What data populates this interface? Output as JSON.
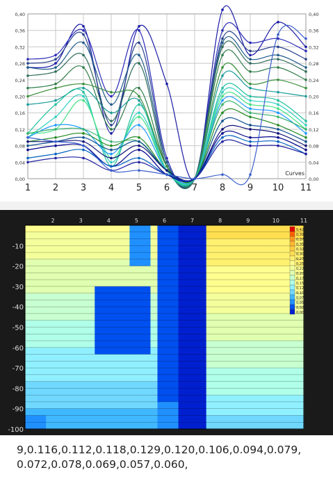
{
  "chart_data": [
    {
      "type": "line",
      "x": [
        1,
        2,
        3,
        4,
        5,
        6,
        7,
        8,
        9,
        10,
        11
      ],
      "xlim": [
        1,
        11
      ],
      "ylim": [
        0,
        0.4
      ],
      "yticks": [
        "0,00",
        "0,04",
        "0,08",
        "0,12",
        "0,16",
        "0,20",
        "0,24",
        "0,28",
        "0,32",
        "0,36",
        "0,40"
      ],
      "xticks": [
        "1",
        "2",
        "3",
        "4",
        "5",
        "6",
        "7",
        "8",
        "9",
        "10",
        "11"
      ],
      "grid": true,
      "legend_label": "Curves",
      "series": [
        {
          "color": "#1a1aa6",
          "values": [
            0.27,
            0.28,
            0.37,
            0.11,
            0.37,
            0.23,
            0.0,
            0.41,
            0.3,
            0.38,
            0.32
          ]
        },
        {
          "color": "#2a2ab8",
          "values": [
            0.29,
            0.3,
            0.36,
            0.2,
            0.36,
            0.05,
            0.0,
            0.36,
            0.33,
            0.34,
            0.31
          ]
        },
        {
          "color": "#27408b",
          "values": [
            0.28,
            0.29,
            0.35,
            0.13,
            0.33,
            0.04,
            0.0,
            0.34,
            0.31,
            0.32,
            0.29
          ]
        },
        {
          "color": "#1f5a8a",
          "values": [
            0.27,
            0.27,
            0.33,
            0.18,
            0.3,
            0.04,
            0.0,
            0.33,
            0.29,
            0.3,
            0.27
          ]
        },
        {
          "color": "#2e6b5a",
          "values": [
            0.25,
            0.26,
            0.3,
            0.14,
            0.28,
            0.03,
            0.0,
            0.32,
            0.28,
            0.29,
            0.26
          ]
        },
        {
          "color": "#2f7c4a",
          "values": [
            0.22,
            0.23,
            0.27,
            0.12,
            0.22,
            0.03,
            0.0,
            0.3,
            0.26,
            0.27,
            0.24
          ]
        },
        {
          "color": "#3a8f3a",
          "values": [
            0.2,
            0.22,
            0.23,
            0.21,
            0.2,
            0.03,
            0.0,
            0.27,
            0.23,
            0.24,
            0.22
          ]
        },
        {
          "color": "#1a9a9a",
          "values": [
            0.18,
            0.19,
            0.22,
            0.16,
            0.19,
            0.02,
            0.0,
            0.25,
            0.22,
            0.21,
            0.2
          ]
        },
        {
          "color": "#20c0a0",
          "values": [
            0.11,
            0.18,
            0.21,
            0.03,
            0.18,
            0.02,
            0.0,
            0.22,
            0.2,
            0.19,
            0.14
          ]
        },
        {
          "color": "#30d0c0",
          "values": [
            0.1,
            0.15,
            0.2,
            0.04,
            0.16,
            0.02,
            0.0,
            0.21,
            0.19,
            0.18,
            0.13
          ]
        },
        {
          "color": "#40e080",
          "values": [
            0.11,
            0.12,
            0.19,
            0.05,
            0.15,
            0.02,
            0.0,
            0.2,
            0.18,
            0.17,
            0.12
          ]
        },
        {
          "color": "#1f9aff",
          "values": [
            0.1,
            0.13,
            0.12,
            0.06,
            0.13,
            0.02,
            0.0,
            0.19,
            0.17,
            0.16,
            0.11
          ]
        },
        {
          "color": "#3cb371",
          "values": [
            0.11,
            0.12,
            0.12,
            0.09,
            0.09,
            0.02,
            0.0,
            0.18,
            0.16,
            0.15,
            0.12
          ]
        },
        {
          "color": "#228b22",
          "values": [
            0.09,
            0.1,
            0.11,
            0.08,
            0.1,
            0.02,
            0.0,
            0.16,
            0.15,
            0.13,
            0.1
          ]
        },
        {
          "color": "#0f4f8f",
          "values": [
            0.08,
            0.09,
            0.1,
            0.07,
            0.09,
            0.02,
            0.0,
            0.14,
            0.13,
            0.12,
            0.09
          ]
        },
        {
          "color": "#111177",
          "values": [
            0.09,
            0.09,
            0.09,
            0.05,
            0.08,
            0.02,
            0.0,
            0.12,
            0.12,
            0.11,
            0.08
          ]
        },
        {
          "color": "#00008b",
          "values": [
            0.07,
            0.08,
            0.08,
            0.03,
            0.07,
            0.01,
            0.0,
            0.11,
            0.1,
            0.1,
            0.07
          ]
        },
        {
          "color": "#0060c0",
          "values": [
            0.05,
            0.06,
            0.07,
            0.03,
            0.05,
            0.01,
            0.0,
            0.1,
            0.09,
            0.09,
            0.06
          ]
        },
        {
          "color": "#2020a0",
          "values": [
            0.04,
            0.05,
            0.05,
            0.02,
            0.04,
            0.01,
            0.0,
            0.09,
            0.08,
            0.08,
            0.06
          ]
        },
        {
          "color": "#3a5fcd",
          "values": [
            0.1,
            0.09,
            0.08,
            0.02,
            0.02,
            0.01,
            0.0,
            0.01,
            0.01,
            0.35,
            0.34
          ]
        }
      ]
    },
    {
      "type": "heatmap",
      "xticks": [
        "2",
        "3",
        "4",
        "5",
        "6",
        "7",
        "8",
        "9",
        "10",
        "11"
      ],
      "yticks": [
        "-10",
        "-20",
        "-30",
        "-40",
        "-50",
        "-60",
        "-70",
        "-80",
        "-90",
        "-100"
      ],
      "colorbar_ticks": [
        "0,42",
        "0,39",
        "0,37",
        "0,35",
        "0,32",
        "0,30",
        "0,27",
        "0,25",
        "0,22",
        "0,20",
        "0,17",
        "0,15",
        "0,12",
        "0,10",
        "0,07",
        "0,05",
        "0,02",
        "0,00"
      ],
      "colorbar_colors": [
        "#e60000",
        "#ff6000",
        "#ff9a20",
        "#ffb830",
        "#ffcc40",
        "#ffdf50",
        "#fff070",
        "#ffff90",
        "#f4ff9c",
        "#e0ffb0",
        "#c8ffd0",
        "#b0ffe8",
        "#90f0ff",
        "#70d8ff",
        "#40b8ff",
        "#2090ff",
        "#0050f0",
        "#0020d0"
      ]
    }
  ],
  "raw_text": "9,0.116,0.112,0.118,0.129,0.120,0.106,0.094,0.079,\n0.072,0.078,0.069,0.057,0.060,"
}
